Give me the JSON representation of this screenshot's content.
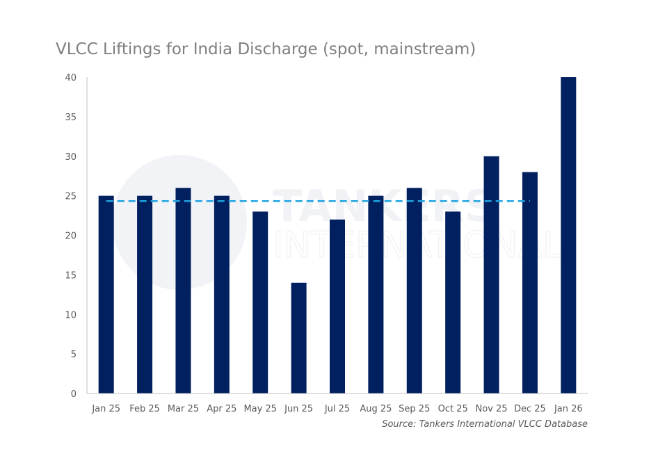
{
  "chart_data": {
    "type": "bar",
    "title": "VLCC Liftings for India Discharge (spot, mainstream)",
    "source": "Source: Tankers International VLCC Database",
    "watermark": {
      "line1": "TANKERS",
      "line2": "INTERNATIONAL"
    },
    "categories": [
      "Jan 25",
      "Feb 25",
      "Mar 25",
      "Apr 25",
      "May 25",
      "Jun 25",
      "Jul 25",
      "Aug 25",
      "Sep 25",
      "Oct 25",
      "Nov 25",
      "Dec 25",
      "Jan 26"
    ],
    "values": [
      25,
      25,
      26,
      25,
      23,
      14,
      22,
      25,
      26,
      23,
      30,
      28,
      40
    ],
    "average_line": {
      "value": 24.33,
      "from": "Jan 25",
      "to": "Dec 25",
      "style": "dashed",
      "color": "#1fa3e0"
    },
    "ylim": [
      0,
      40
    ],
    "yticks": [
      0,
      5,
      10,
      15,
      20,
      25,
      30,
      35,
      40
    ],
    "xlabel": "",
    "ylabel": "",
    "grid": false,
    "colors": {
      "bar": "#002060",
      "average": "#1fa3e0"
    }
  }
}
